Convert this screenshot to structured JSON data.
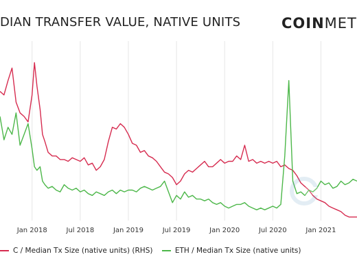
{
  "header": {
    "title": "DIAN TRANSFER VALUE, NATIVE UNITS",
    "brand_bold": "COIN",
    "brand_light": "METR"
  },
  "legend": {
    "series1_label": "C / Median Tx Size (native units) (RHS)",
    "series2_label": "ETH / Median Tx Size (native units)"
  },
  "colors": {
    "series1": "#d62b4f",
    "series2": "#4cb749",
    "grid": "#e6e6e6"
  },
  "chart_data": {
    "type": "line",
    "x_ticks": [
      "Jan 2018",
      "Jul 2018",
      "Jan 2019",
      "Jul 2019",
      "Jan 2020",
      "Jul 2020",
      "Jan 2021"
    ],
    "x_tick_positions": [
      0,
      6,
      12,
      18,
      24,
      30,
      36
    ],
    "x_range": [
      -4,
      40.5
    ],
    "ylim_rhs": [
      0,
      100
    ],
    "ylim_lhs": [
      0,
      100
    ],
    "grid": true,
    "legend_position": "bottom",
    "series": [
      {
        "name": "C / Median Tx Size (native units) (RHS)",
        "axis": "rhs",
        "color_key": "series1",
        "x": [
          -4,
          -3.5,
          -3,
          -2.5,
          -2,
          -1.5,
          -1,
          -0.5,
          0,
          0.3,
          0.6,
          1,
          1.3,
          1.6,
          2,
          2.5,
          3,
          3.5,
          4,
          4.5,
          5,
          5.5,
          6,
          6.5,
          7,
          7.5,
          8,
          8.5,
          9,
          9.5,
          10,
          10.5,
          11,
          11.5,
          12,
          12.5,
          13,
          13.5,
          14,
          14.5,
          15,
          15.5,
          16,
          16.5,
          17,
          17.5,
          18,
          18.5,
          19,
          19.5,
          20,
          20.5,
          21,
          21.5,
          22,
          22.5,
          23,
          23.5,
          24,
          24.5,
          25,
          25.5,
          26,
          26.5,
          27,
          27.5,
          28,
          28.5,
          29,
          29.5,
          30,
          30.5,
          31,
          31.5,
          32,
          32.5,
          33,
          33.5,
          34,
          34.5,
          35,
          35.5,
          36,
          36.5,
          37,
          37.5,
          38,
          38.5,
          39,
          39.5,
          40,
          40.5
        ],
        "values": [
          72,
          70,
          78,
          85,
          66,
          60,
          58,
          55,
          70,
          88,
          75,
          62,
          48,
          44,
          38,
          36,
          36,
          34,
          34,
          33,
          35,
          34,
          33,
          35,
          31,
          32,
          28,
          30,
          34,
          44,
          52,
          51,
          54,
          52,
          48,
          43,
          42,
          38,
          39,
          36,
          35,
          33,
          30,
          27,
          26,
          24,
          20,
          22,
          26,
          28,
          27,
          29,
          31,
          33,
          30,
          30,
          32,
          34,
          32,
          33,
          33,
          36,
          34,
          42,
          33,
          34,
          32,
          33,
          32,
          33,
          32,
          33,
          30,
          31,
          29,
          28,
          25,
          21,
          19,
          17,
          14,
          12,
          11,
          10,
          8,
          7,
          6,
          5,
          3,
          2,
          2,
          2
        ]
      },
      {
        "name": "ETH / Median Tx Size (native units)",
        "axis": "lhs",
        "color_key": "series2",
        "x": [
          -4,
          -3.5,
          -3,
          -2.5,
          -2,
          -1.5,
          -1,
          -0.5,
          0,
          0.3,
          0.6,
          1,
          1.3,
          1.6,
          2,
          2.5,
          3,
          3.5,
          4,
          4.5,
          5,
          5.5,
          6,
          6.5,
          7,
          7.5,
          8,
          8.5,
          9,
          9.5,
          10,
          10.5,
          11,
          11.5,
          12,
          12.5,
          13,
          13.5,
          14,
          14.5,
          15,
          15.5,
          16,
          16.5,
          17,
          17.5,
          18,
          18.5,
          19,
          19.5,
          20,
          20.5,
          21,
          21.5,
          22,
          22.5,
          23,
          23.5,
          24,
          24.5,
          25,
          25.5,
          26,
          26.5,
          27,
          27.5,
          28,
          28.5,
          29,
          29.5,
          30,
          30.5,
          31,
          31.5,
          32,
          32.5,
          33,
          33.5,
          34,
          34.5,
          35,
          35.5,
          36,
          36.5,
          37,
          37.5,
          38,
          38.5,
          39,
          39.5,
          40,
          40.5
        ],
        "values": [
          58,
          45,
          52,
          48,
          60,
          42,
          48,
          54,
          40,
          30,
          28,
          30,
          22,
          20,
          18,
          19,
          17,
          16,
          20,
          18,
          17,
          18,
          16,
          17,
          15,
          14,
          16,
          15,
          14,
          16,
          17,
          15,
          17,
          16,
          17,
          17,
          16,
          18,
          19,
          18,
          17,
          18,
          19,
          22,
          16,
          10,
          14,
          12,
          16,
          13,
          14,
          12,
          12,
          11,
          12,
          10,
          9,
          10,
          8,
          7,
          8,
          9,
          9,
          10,
          8,
          7,
          6,
          7,
          6,
          7,
          8,
          7,
          9,
          36,
          78,
          22,
          15,
          16,
          14,
          17,
          16,
          18,
          22,
          20,
          21,
          18,
          19,
          22,
          20,
          21,
          23,
          22
        ]
      }
    ]
  }
}
